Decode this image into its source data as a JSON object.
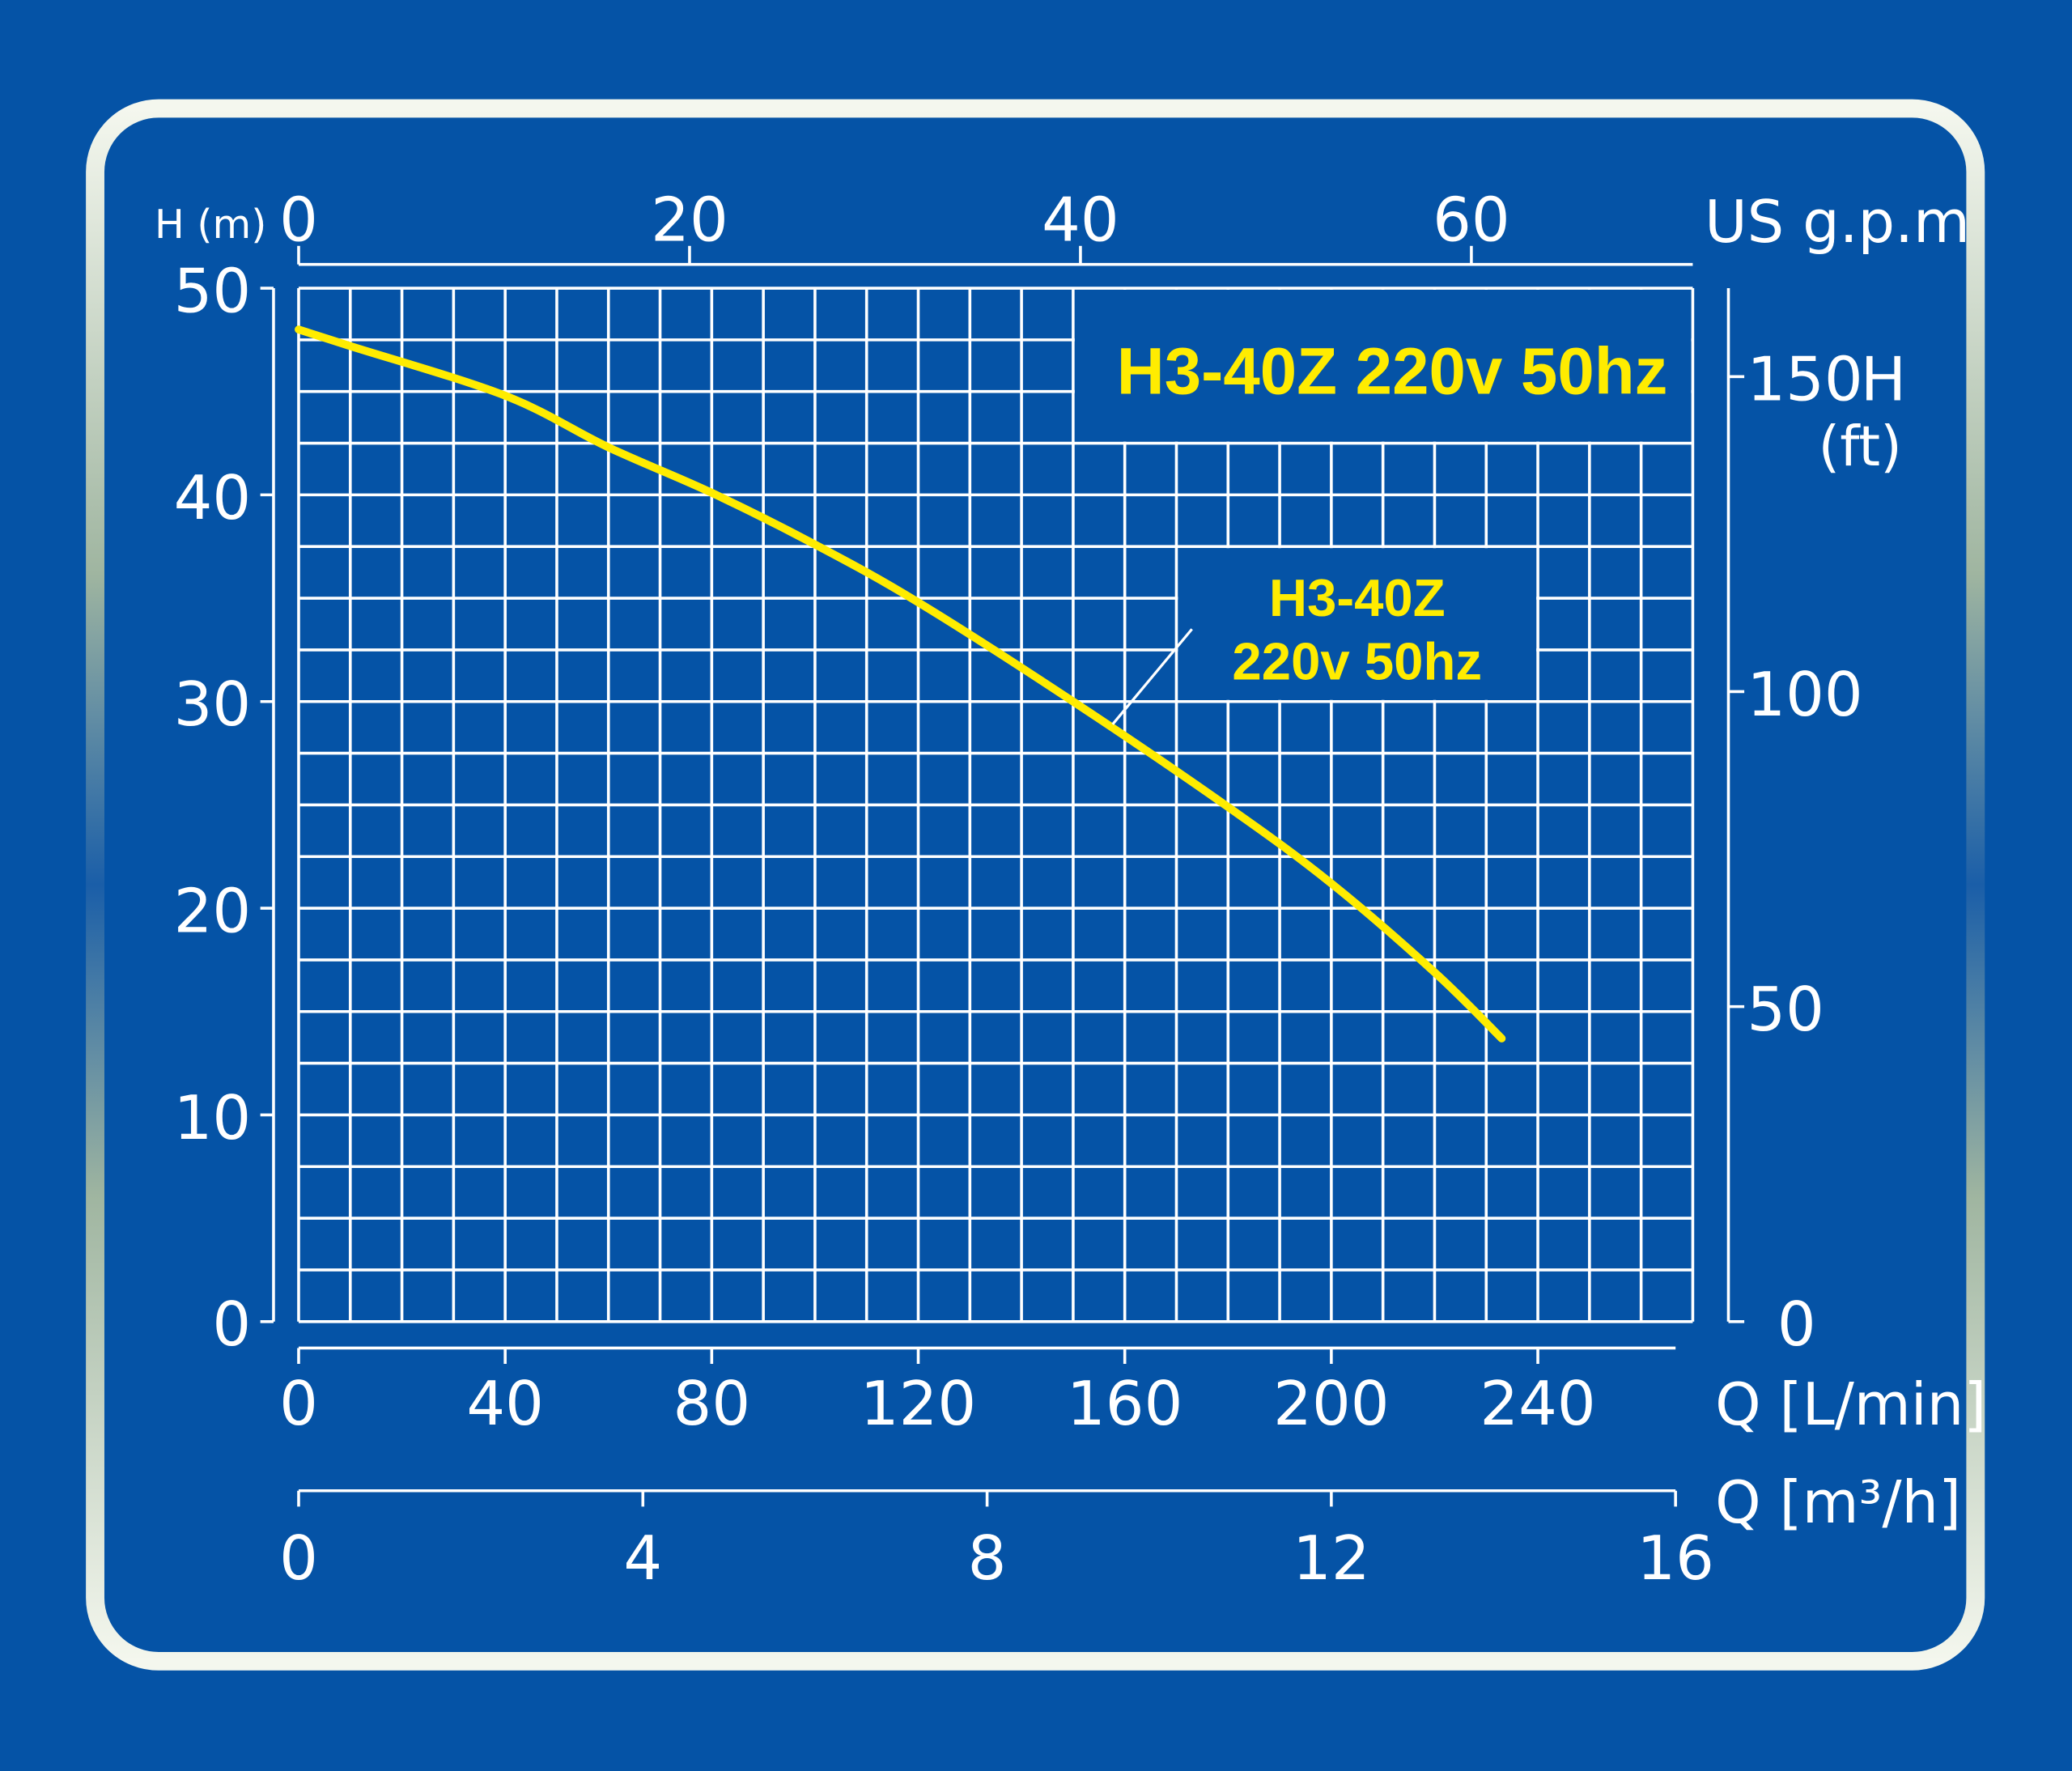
{
  "chart_data": {
    "type": "line",
    "title": "H3-40Z 220v 50hz",
    "series": [
      {
        "name": "H3-40Z 220v 50hz",
        "label_lines": [
          "H3-40Z",
          "220v 50hz"
        ],
        "x": [
          0,
          10,
          40,
          60,
          80,
          100,
          120,
          150,
          180,
          200,
          220,
          233
        ],
        "y": [
          48,
          47.2,
          44.8,
          42.3,
          40.1,
          37.6,
          34.8,
          30,
          24.9,
          21.2,
          16.9,
          13.7
        ],
        "color": "#ffec00"
      }
    ],
    "xlabel": "Q [L/min]",
    "xlim": [
      0,
      270
    ],
    "xticks": [
      0,
      40,
      80,
      120,
      160,
      200,
      240
    ],
    "ylabel": "H (m)",
    "ylim": [
      0,
      50
    ],
    "yticks": [
      0,
      10,
      20,
      30,
      40,
      50
    ],
    "top_axis": {
      "label": "US g.p.m",
      "ticks": [
        0,
        20,
        40,
        60
      ]
    },
    "right_axis": {
      "label_lines": [
        "H",
        "(ft)"
      ],
      "ticks": [
        0,
        50,
        100,
        150
      ]
    },
    "bottom2_axis": {
      "label": "Q [m³/h]",
      "ticks": [
        0,
        4,
        8,
        12,
        16
      ]
    },
    "grid": true,
    "grid_step": {
      "x": 10,
      "y": 2.5
    }
  },
  "colors": {
    "background": "#0553a6",
    "grid": "#ffffff",
    "curve": "#ffec00",
    "frame": "#e8efe0"
  }
}
